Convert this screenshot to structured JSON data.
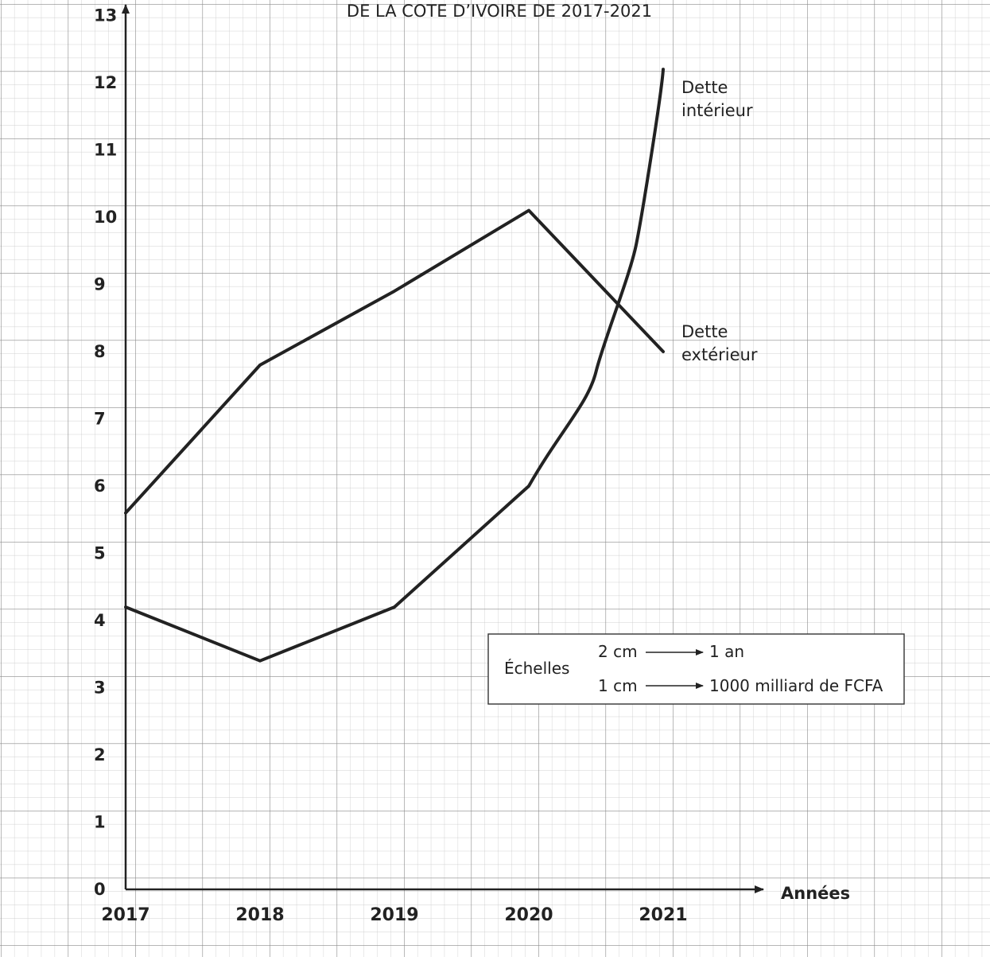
{
  "chart_data": {
    "type": "line",
    "title": "DE LA COTE D’IVOIRE DE 2017-2021",
    "xlabel": "Années",
    "ylabel": "",
    "categories": [
      "2017",
      "2018",
      "2019",
      "2020",
      "2021"
    ],
    "x": [
      2017,
      2018,
      2019,
      2020,
      2021
    ],
    "ylim": [
      0,
      13
    ],
    "yticks": [
      "0",
      "1",
      "2",
      "3",
      "4",
      "5",
      "6",
      "7",
      "8",
      "9",
      "10",
      "11",
      "12",
      "13"
    ],
    "grid": true,
    "series": [
      {
        "name": "Dette intérieur",
        "label_lines": [
          "Dette",
          "intérieur"
        ],
        "x": [
          2017,
          2018,
          2019,
          2020,
          2020.5,
          2020.8,
          2021
        ],
        "values": [
          4.2,
          3.4,
          4.2,
          6.0,
          7.7,
          9.6,
          12.2
        ]
      },
      {
        "name": "Dette extérieur",
        "label_lines": [
          "Dette",
          "extérieur"
        ],
        "x": [
          2017,
          2018,
          2019,
          2020,
          2021
        ],
        "values": [
          5.6,
          7.8,
          8.9,
          10.1,
          8.0
        ]
      }
    ],
    "scale_box": {
      "label": "Échelles",
      "rows": [
        {
          "left": "2 cm",
          "right": "1 an"
        },
        {
          "left": "1 cm",
          "right": "1000 milliard de FCFA"
        }
      ]
    }
  }
}
